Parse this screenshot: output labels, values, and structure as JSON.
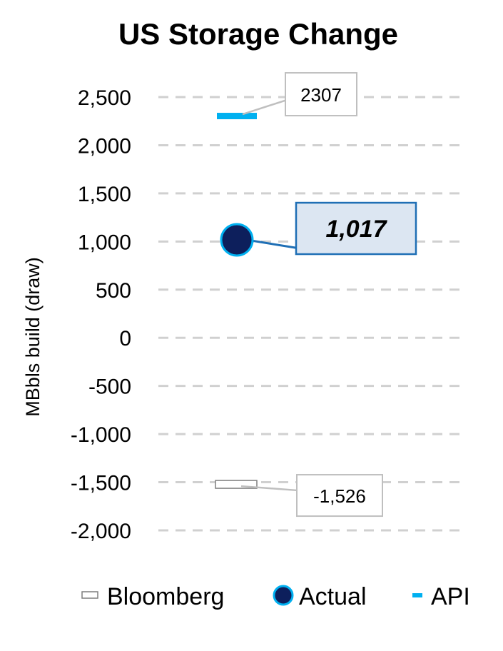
{
  "chart_data": {
    "type": "scatter",
    "title": "US Storage Change",
    "ylabel": "MBbls build (draw)",
    "xlabel": "",
    "ylim": [
      -2000,
      2500
    ],
    "y_ticks": [
      "2,500",
      "2,000",
      "1,500",
      "1,000",
      "500",
      "0",
      "-500",
      "-1,000",
      "-1,500",
      "-2,000"
    ],
    "y_tick_values": [
      2500,
      2000,
      1500,
      1000,
      500,
      0,
      -500,
      -1000,
      -1500,
      -2000
    ],
    "grid": true,
    "legend_position": "bottom",
    "series": [
      {
        "name": "Bloomberg",
        "value": -1526,
        "label": "-1,526",
        "marker": "dash-outline",
        "color": "#ffffff",
        "edge": "#7f7f7f"
      },
      {
        "name": "Actual",
        "value": 1017,
        "label": "1,017",
        "marker": "circle",
        "color": "#0d1f5c",
        "edge": "#00b0f0"
      },
      {
        "name": "API",
        "value": 2307,
        "label": "2307",
        "marker": "dash",
        "color": "#00b0f0"
      }
    ]
  },
  "colors": {
    "grid": "#d0d0d0",
    "actual_callout_fill": "#dce6f2",
    "actual_callout_border": "#1f6fb5",
    "callout_border": "#bfbfbf"
  }
}
